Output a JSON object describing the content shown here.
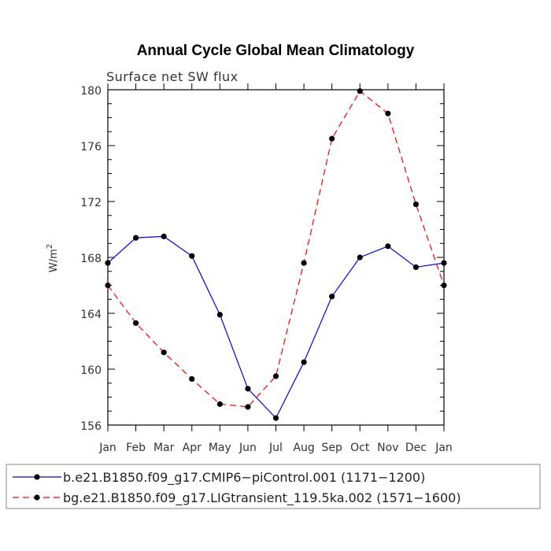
{
  "chart_data": {
    "type": "line",
    "title": "Annual Cycle Global Mean Climatology",
    "subtitle": "Surface net SW flux",
    "ylabel": "W/m",
    "ylabel_superscript": "2",
    "categories": [
      "Jan",
      "Feb",
      "Mar",
      "Apr",
      "May",
      "Jun",
      "Jul",
      "Aug",
      "Sep",
      "Oct",
      "Nov",
      "Dec",
      "Jan"
    ],
    "yticks": [
      "156",
      "160",
      "164",
      "168",
      "172",
      "176",
      "180"
    ],
    "ylim": [
      156,
      180
    ],
    "grid": false,
    "legend_position": "bottom",
    "series": [
      {
        "name": "b.e21.B1850.f09_g17.CMIP6−piControl.001 (1171−1200)",
        "color": "#0000ff",
        "dash": "solid",
        "values": [
          167.6,
          169.4,
          169.5,
          168.1,
          163.9,
          158.6,
          156.5,
          160.5,
          165.2,
          168.0,
          168.8,
          167.3,
          167.6
        ]
      },
      {
        "name": "bg.e21.B1850.f09_g17.LIGtransient_119.5ka.002 (1571−1600)",
        "color": "#ff0000",
        "dash": "dashed",
        "values": [
          166.0,
          163.3,
          161.2,
          159.3,
          157.5,
          157.3,
          159.5,
          167.6,
          176.5,
          179.9,
          178.3,
          171.8,
          166.0
        ]
      }
    ]
  }
}
